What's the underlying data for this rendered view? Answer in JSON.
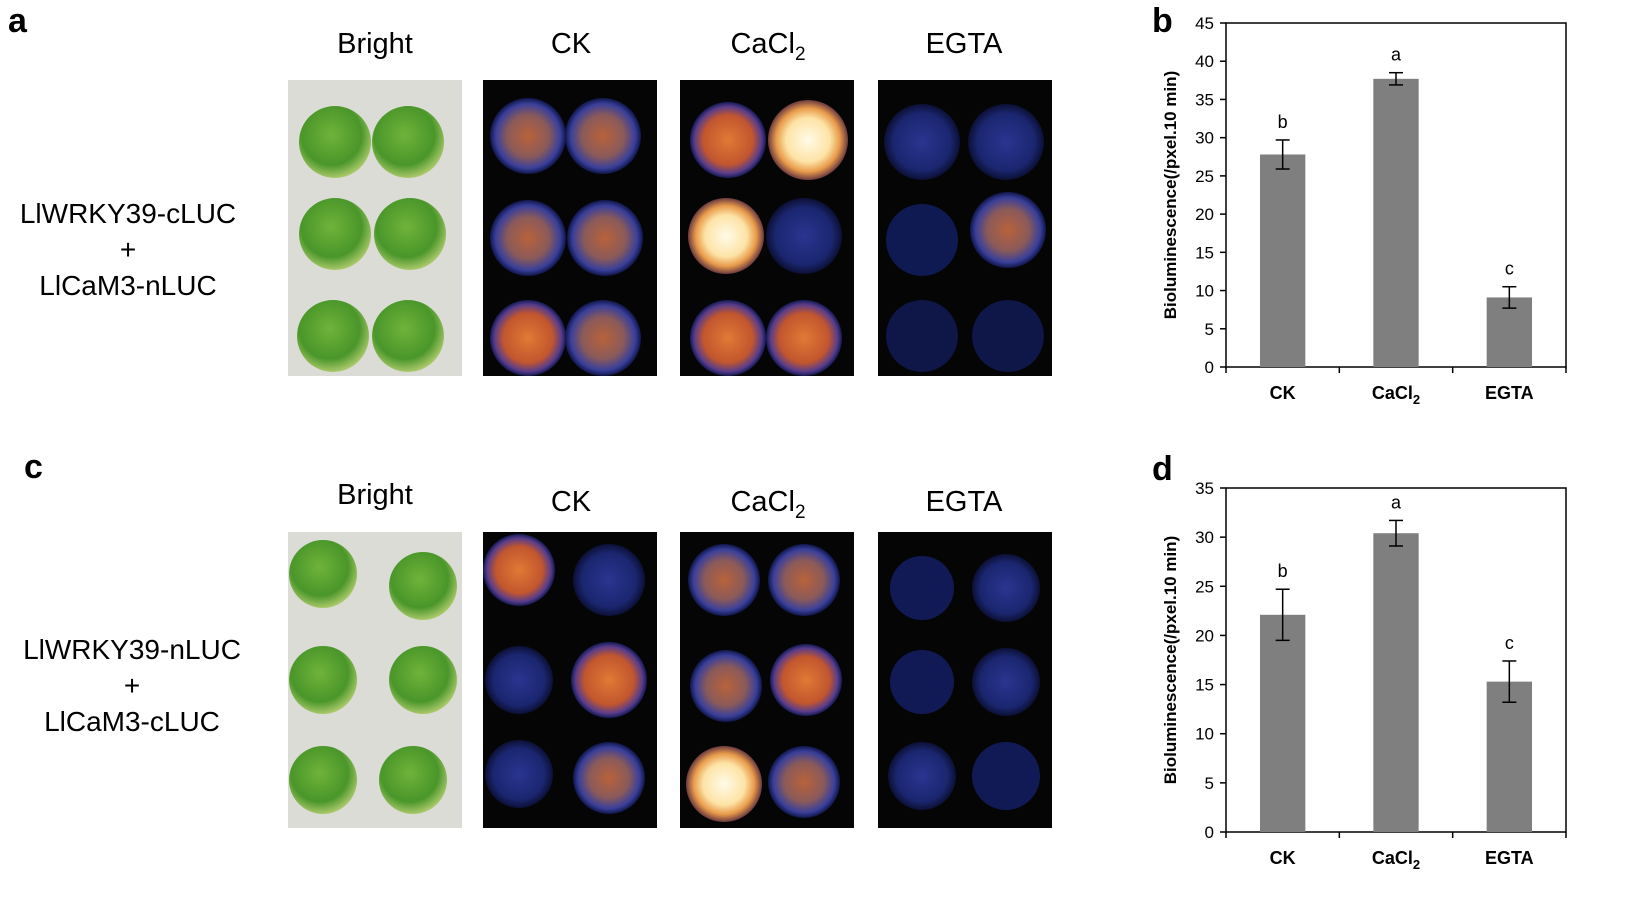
{
  "panels": {
    "a": {
      "letter": "a"
    },
    "b": {
      "letter": "b"
    },
    "c": {
      "letter": "c"
    },
    "d": {
      "letter": "d"
    }
  },
  "row_top": {
    "construct_line1": "LlWRKY39-cLUC",
    "construct_plus": "+",
    "construct_line2": "LlCaM3-nLUC",
    "headers": {
      "bright": "Bright",
      "ck": "CK",
      "cacl2_base": "CaCl",
      "cacl2_sub": "2",
      "egta": "EGTA"
    }
  },
  "row_bottom": {
    "construct_line1": "LlWRKY39-nLUC",
    "construct_plus": "+",
    "construct_line2": "LlCaM3-cLUC",
    "headers": {
      "bright": "Bright",
      "ck": "CK",
      "cacl2_base": "CaCl",
      "cacl2_sub": "2",
      "egta": "EGTA"
    }
  },
  "colors": {
    "bar": "#7f7f7f",
    "leaf": "#4f9a2a",
    "plate_bright": "#dcdcd6",
    "plate_dark": "#050505",
    "luminescence_low": "#1f2c8c",
    "luminescence_mid": "#c8552a",
    "luminescence_high": "#fff3d0"
  },
  "chart_data": [
    {
      "panel": "b",
      "type": "bar",
      "categories": [
        "CK",
        "CaCl2",
        "EGTA"
      ],
      "category_display": [
        {
          "base": "CK",
          "sub": ""
        },
        {
          "base": "CaCl",
          "sub": "2"
        },
        {
          "base": "EGTA",
          "sub": ""
        }
      ],
      "values": [
        27.8,
        37.7,
        9.1
      ],
      "errors": [
        1.9,
        0.8,
        1.4
      ],
      "significance": [
        "b",
        "a",
        "c"
      ],
      "ylabel": "Bioluminescence(/pxel.10 min)",
      "ylim": [
        0,
        45
      ],
      "yticks": [
        0,
        5,
        10,
        15,
        20,
        25,
        30,
        35,
        40,
        45
      ],
      "grid": false,
      "legend": false
    },
    {
      "panel": "d",
      "type": "bar",
      "categories": [
        "CK",
        "CaCl2",
        "EGTA"
      ],
      "category_display": [
        {
          "base": "CK",
          "sub": ""
        },
        {
          "base": "CaCl",
          "sub": "2"
        },
        {
          "base": "EGTA",
          "sub": ""
        }
      ],
      "values": [
        22.1,
        30.4,
        15.3
      ],
      "errors": [
        2.6,
        1.3,
        2.1
      ],
      "significance": [
        "b",
        "a",
        "c"
      ],
      "ylabel": "Bioluminescence(/pxel.10 min)",
      "ylim": [
        0,
        35
      ],
      "yticks": [
        0,
        5,
        10,
        15,
        20,
        25,
        30,
        35
      ],
      "grid": false,
      "legend": false
    }
  ]
}
